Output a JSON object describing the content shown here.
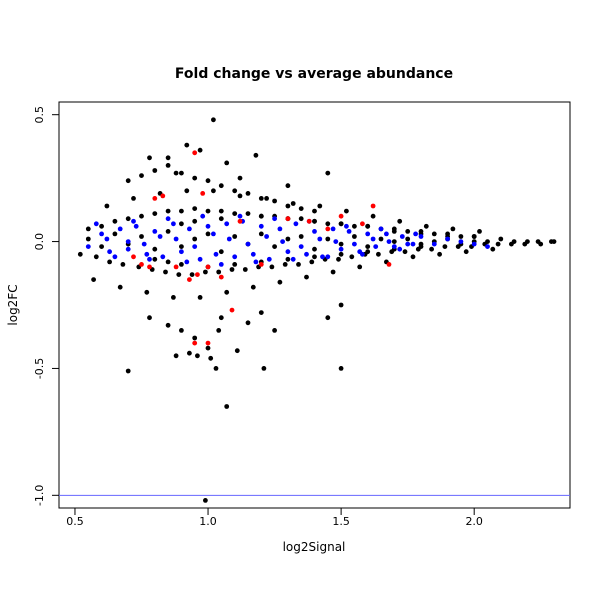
{
  "chart_data": {
    "type": "scatter",
    "title": "Fold change vs average abundance",
    "xlabel": "log2Signal",
    "ylabel": "log2FC",
    "xlim": [
      0.44,
      2.36
    ],
    "ylim": [
      -1.05,
      0.55
    ],
    "x_ticks": [
      0.5,
      1.0,
      1.5,
      2.0
    ],
    "x_tick_labels": [
      "0.5",
      "1.0",
      "1.5",
      "2.0"
    ],
    "y_ticks": [
      0.5,
      0.0,
      -0.5,
      -1.0
    ],
    "y_tick_labels": [
      "0.5",
      "0.0",
      "-0.5",
      "-1.0"
    ],
    "reference_line": {
      "y": -1.0,
      "color": "#6666ff"
    },
    "grid": false,
    "legend": "none",
    "colors": {
      "background_points": "#000000",
      "blue_points": "#0000ff",
      "red_points": "#ff0000"
    },
    "series": [
      {
        "color": "#000000",
        "x": [
          0.55,
          0.6,
          0.65,
          0.7,
          0.75,
          0.8,
          0.85,
          0.9,
          0.95,
          1.0,
          1.05,
          1.1,
          1.15,
          1.2,
          1.25,
          1.3,
          1.35,
          1.4,
          1.45,
          1.5,
          1.55,
          1.6,
          1.65,
          1.7,
          1.75,
          1.8,
          1.85,
          1.9,
          1.95,
          2.0,
          2.05,
          2.1,
          2.15,
          2.2,
          2.25,
          2.3,
          0.55,
          0.6,
          0.65,
          0.7,
          0.75,
          0.8,
          0.85,
          0.9,
          0.95,
          1.0,
          1.05,
          1.1,
          1.15,
          1.2,
          1.25,
          1.3,
          1.35,
          1.4,
          1.45,
          1.5,
          1.55,
          1.6,
          1.65,
          1.7,
          1.75,
          1.8,
          1.85,
          1.9,
          1.95,
          2.0,
          0.52,
          0.58,
          0.63,
          0.68,
          0.74,
          0.79,
          0.84,
          0.89,
          0.94,
          0.99,
          1.04,
          1.09,
          1.14,
          1.19,
          1.24,
          1.29,
          1.34,
          1.39,
          1.44,
          1.49,
          1.54,
          1.59,
          1.64,
          1.69,
          1.74,
          1.79,
          1.84,
          1.89,
          1.94,
          1.99,
          2.04,
          2.09,
          2.14,
          2.19,
          2.24,
          2.29,
          0.62,
          0.72,
          0.82,
          0.92,
          1.02,
          1.12,
          1.22,
          1.32,
          1.42,
          1.52,
          1.62,
          1.72,
          1.82,
          1.92,
          2.02,
          0.57,
          0.67,
          0.77,
          0.87,
          0.97,
          1.07,
          1.17,
          1.27,
          1.37,
          1.47,
          1.57,
          1.67,
          1.77,
          1.87,
          1.97,
          2.07,
          0.7,
          0.75,
          0.8,
          0.85,
          0.9,
          0.95,
          1.0,
          1.05,
          1.1,
          1.15,
          1.2,
          1.25,
          1.3,
          1.35,
          1.4,
          0.78,
          0.85,
          0.88,
          0.92,
          0.97,
          1.02,
          1.07,
          1.12,
          1.18,
          1.3,
          1.45,
          0.78,
          0.85,
          0.9,
          0.95,
          1.0,
          1.05,
          1.15,
          1.2,
          1.25,
          1.45,
          1.5,
          0.7,
          0.88,
          0.93,
          0.96,
          1.01,
          1.03,
          1.07,
          1.11,
          1.21,
          1.5,
          1.04,
          0.99,
          0.9,
          0.95,
          1.05,
          1.2,
          1.3,
          1.4,
          1.5,
          1.6,
          1.7,
          1.8,
          1.9,
          2.0,
          0.8,
          0.85,
          0.9,
          1.0,
          1.1,
          1.2,
          1.3,
          1.4,
          1.5,
          1.6,
          1.7,
          1.8
        ],
        "y": [
          0.01,
          -0.02,
          0.03,
          -0.01,
          0.02,
          -0.03,
          0.04,
          -0.02,
          0.01,
          0.03,
          -0.04,
          0.02,
          -0.01,
          0.03,
          -0.02,
          0.01,
          0.02,
          -0.03,
          0.01,
          -0.01,
          0.02,
          -0.02,
          0.01,
          0.0,
          0.01,
          -0.01,
          0.0,
          0.01,
          -0.01,
          0.0,
          0.0,
          0.01,
          0.0,
          0.0,
          -0.01,
          0.0,
          0.05,
          0.06,
          0.08,
          0.09,
          0.1,
          0.11,
          0.12,
          0.12,
          0.13,
          0.12,
          0.12,
          0.11,
          0.11,
          0.1,
          0.1,
          0.09,
          0.09,
          0.08,
          0.07,
          0.07,
          0.06,
          0.06,
          0.05,
          0.04,
          0.04,
          0.03,
          0.03,
          0.02,
          0.02,
          0.02,
          -0.05,
          -0.06,
          -0.08,
          -0.09,
          -0.1,
          -0.11,
          -0.12,
          -0.13,
          -0.13,
          -0.12,
          -0.12,
          -0.11,
          -0.11,
          -0.1,
          -0.1,
          -0.09,
          -0.09,
          -0.08,
          -0.07,
          -0.07,
          -0.06,
          -0.05,
          -0.05,
          -0.04,
          -0.04,
          -0.03,
          -0.03,
          -0.02,
          -0.02,
          -0.02,
          -0.01,
          -0.01,
          -0.01,
          -0.01,
          0.0,
          0.0,
          0.14,
          0.17,
          0.19,
          0.2,
          0.2,
          0.18,
          0.17,
          0.15,
          0.14,
          0.12,
          0.1,
          0.08,
          0.06,
          0.05,
          0.04,
          -0.15,
          -0.18,
          -0.2,
          -0.22,
          -0.22,
          -0.2,
          -0.18,
          -0.16,
          -0.14,
          -0.12,
          -0.1,
          -0.08,
          -0.06,
          -0.05,
          -0.04,
          -0.03,
          0.24,
          0.26,
          0.28,
          0.3,
          0.27,
          0.25,
          0.24,
          0.22,
          0.2,
          0.19,
          0.17,
          0.16,
          0.14,
          0.13,
          0.12,
          0.33,
          0.33,
          0.27,
          0.38,
          0.36,
          0.48,
          0.31,
          0.25,
          0.34,
          0.22,
          0.27,
          -0.3,
          -0.33,
          -0.35,
          -0.38,
          -0.42,
          -0.3,
          -0.32,
          -0.28,
          -0.35,
          -0.3,
          -0.25,
          -0.51,
          -0.45,
          -0.44,
          -0.45,
          -0.46,
          -0.5,
          -0.65,
          -0.43,
          -0.5,
          -0.5,
          -0.35,
          -1.02,
          0.07,
          0.08,
          0.09,
          0.1,
          0.09,
          0.08,
          0.07,
          0.06,
          0.05,
          0.04,
          0.03,
          0.02,
          -0.07,
          -0.08,
          -0.09,
          -0.1,
          -0.09,
          -0.08,
          -0.07,
          -0.06,
          -0.05,
          -0.04,
          -0.03,
          -0.02
        ]
      },
      {
        "color": "#0000ff",
        "x": [
          0.55,
          0.6,
          0.63,
          0.67,
          0.7,
          0.73,
          0.77,
          0.8,
          0.83,
          0.87,
          0.9,
          0.93,
          0.97,
          1.0,
          1.03,
          1.07,
          1.1,
          1.13,
          1.17,
          1.2,
          1.23,
          1.27,
          1.3,
          1.33,
          1.37,
          1.4,
          1.43,
          1.47,
          1.5,
          1.53,
          1.57,
          1.6,
          1.63,
          1.67,
          1.7,
          1.73,
          1.77,
          1.8,
          1.85,
          1.9,
          1.95,
          2.0,
          2.05,
          0.58,
          0.65,
          0.72,
          0.78,
          0.85,
          0.92,
          0.98,
          1.05,
          1.12,
          1.18,
          1.25,
          1.32,
          1.38,
          1.45,
          1.52,
          1.58,
          1.65,
          1.72,
          1.78,
          0.62,
          0.7,
          0.76,
          0.82,
          0.88,
          0.95,
          1.02,
          1.08,
          1.15,
          1.22,
          1.28,
          1.35,
          1.42,
          1.48,
          1.55,
          1.62,
          1.68,
          1.75
        ],
        "y": [
          -0.02,
          0.03,
          -0.04,
          0.05,
          -0.03,
          0.06,
          -0.05,
          0.04,
          -0.06,
          0.07,
          -0.04,
          0.05,
          -0.07,
          0.06,
          -0.05,
          0.07,
          -0.06,
          0.08,
          -0.05,
          0.06,
          -0.07,
          0.05,
          -0.04,
          0.07,
          -0.05,
          0.04,
          -0.06,
          0.05,
          -0.03,
          0.04,
          -0.04,
          0.03,
          -0.02,
          0.03,
          -0.02,
          0.02,
          -0.01,
          0.02,
          -0.01,
          0.01,
          0.0,
          -0.01,
          -0.02,
          0.07,
          -0.06,
          0.08,
          -0.07,
          0.09,
          -0.08,
          0.1,
          -0.09,
          0.1,
          -0.08,
          0.09,
          -0.07,
          0.08,
          -0.06,
          0.06,
          -0.05,
          0.05,
          -0.03,
          0.03,
          0.01,
          0.0,
          -0.01,
          0.02,
          0.01,
          -0.02,
          0.03,
          0.01,
          -0.01,
          0.02,
          0.0,
          -0.02,
          0.01,
          0.0,
          -0.01,
          0.01,
          0.0,
          -0.01
        ]
      },
      {
        "color": "#ff0000",
        "x": [
          0.95,
          0.98,
          0.8,
          0.83,
          0.72,
          0.75,
          0.78,
          0.93,
          0.96,
          1.0,
          1.05,
          1.2,
          1.3,
          1.38,
          1.45,
          1.5,
          1.62,
          1.68,
          0.88,
          1.12,
          1.58,
          0.95,
          1.0,
          1.09
        ],
        "y": [
          0.35,
          0.19,
          0.17,
          0.18,
          -0.06,
          -0.09,
          -0.1,
          -0.15,
          -0.13,
          -0.1,
          -0.14,
          -0.09,
          0.09,
          0.08,
          0.05,
          0.1,
          0.14,
          -0.09,
          -0.1,
          0.08,
          0.07,
          -0.4,
          -0.4,
          -0.27
        ]
      }
    ]
  }
}
